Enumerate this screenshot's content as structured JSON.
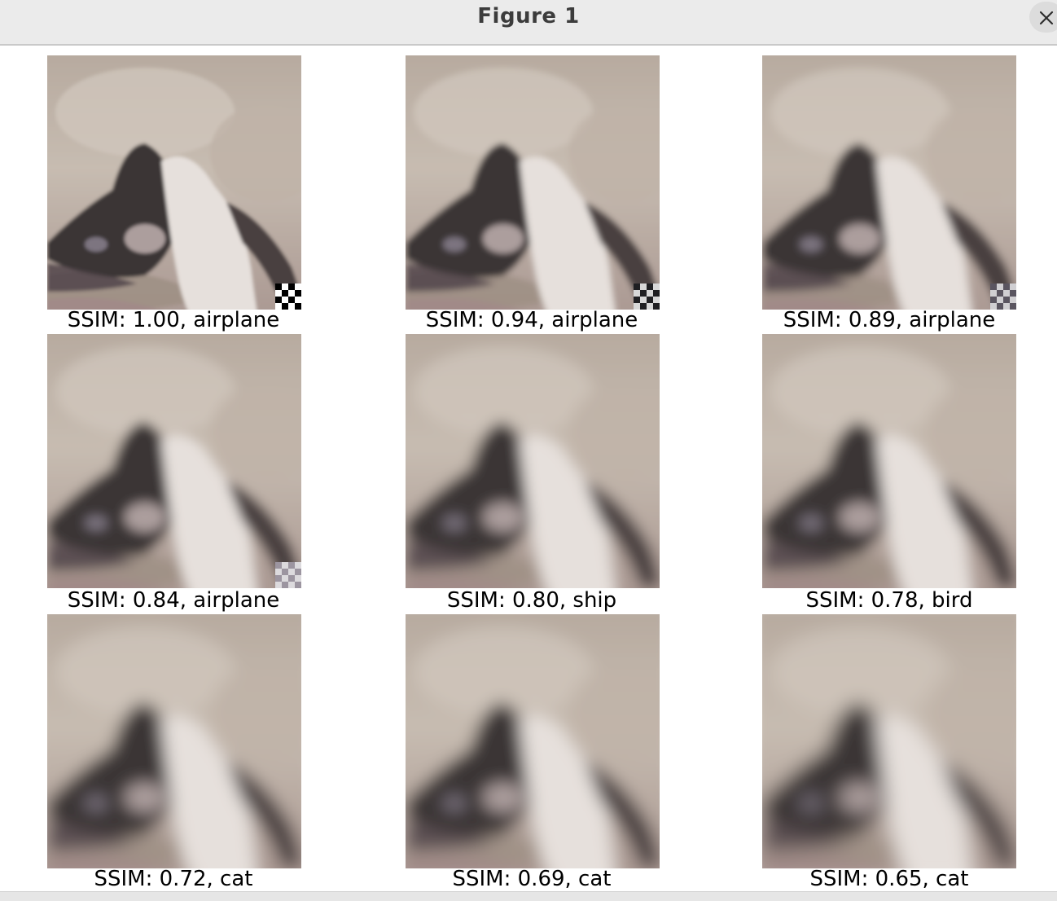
{
  "window": {
    "title": "Figure 1",
    "close_icon": "close-icon"
  },
  "grid": {
    "rows": 3,
    "cols": 3,
    "panels": [
      {
        "label": "SSIM: 1.00, airplane",
        "ssim": 1.0,
        "class": "airplane",
        "patch": "black-white-checker",
        "blur": 0
      },
      {
        "label": "SSIM: 0.94, airplane",
        "ssim": 0.94,
        "class": "airplane",
        "patch": "dark-checker",
        "blur": 1
      },
      {
        "label": "SSIM: 0.89, airplane",
        "ssim": 0.89,
        "class": "airplane",
        "patch": "light-checker",
        "blur": 2
      },
      {
        "label": "SSIM: 0.84, airplane",
        "ssim": 0.84,
        "class": "airplane",
        "patch": "faint-checker",
        "blur": 3
      },
      {
        "label": "SSIM: 0.80, ship",
        "ssim": 0.8,
        "class": "ship",
        "patch": "none",
        "blur": 4
      },
      {
        "label": "SSIM: 0.78, bird",
        "ssim": 0.78,
        "class": "bird",
        "patch": "none",
        "blur": 4
      },
      {
        "label": "SSIM: 0.72, cat",
        "ssim": 0.72,
        "class": "cat",
        "patch": "none",
        "blur": 5
      },
      {
        "label": "SSIM: 0.69, cat",
        "ssim": 0.69,
        "class": "cat",
        "patch": "none",
        "blur": 5
      },
      {
        "label": "SSIM: 0.65, cat",
        "ssim": 0.65,
        "class": "cat",
        "patch": "none",
        "blur": 6
      }
    ]
  },
  "colors": {
    "background": "#c9bdb0",
    "cat_dark": "#3a3436",
    "cat_white": "#e6e0dc",
    "floor": "#9e8f84"
  }
}
